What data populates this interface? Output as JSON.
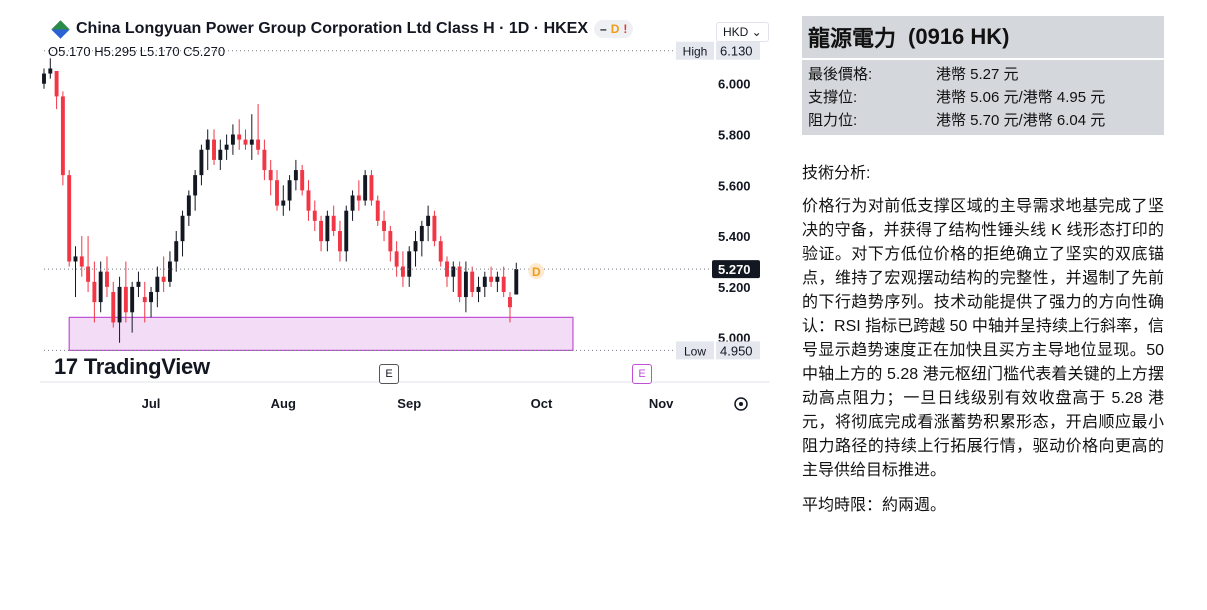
{
  "chart": {
    "instrument": "China Longyuan Power Group Corporation Ltd Class H · 1D · HKEX",
    "badge_minus": "–",
    "badge_d": "D",
    "badge_exclaim": "!",
    "ohlc_text": "O5.170 H5.295 L5.170 C5.270",
    "currency": "HKD ⌄",
    "high_tag": "High",
    "high_value": "6.130",
    "low_tag": "Low",
    "low_value": "4.950",
    "last_price": "5.270",
    "dividend_marker": "D",
    "tv_brand": "TradingView",
    "earnings_marker": "E",
    "time_settings_icon": "gear-icon"
  },
  "colors": {
    "up": "#131722",
    "down": "#f23645",
    "zone_fill": "#f3dcf6",
    "zone_stroke": "#c04fd6",
    "label_bg": "#131722",
    "highlow_bg": "#e4e7ee",
    "dividend": "#f39b18"
  },
  "chart_data": {
    "type": "candlestick",
    "title": "China Longyuan Power Group Corporation Ltd Class H · 1D · HKEX",
    "y_ticks": [
      5.0,
      5.2,
      5.4,
      5.6,
      5.8,
      6.0
    ],
    "y_tick_labels": [
      "5.000",
      "5.200",
      "5.400",
      "5.600",
      "5.800",
      "6.000"
    ],
    "ylim": [
      4.92,
      6.18
    ],
    "x_tick_labels": [
      "Jul",
      "Aug",
      "Sep",
      "Oct",
      "Nov"
    ],
    "x_tick_index": [
      17,
      38,
      58,
      79,
      98
    ],
    "last_close": 5.27,
    "high": 6.13,
    "low": 4.95,
    "support_zone": {
      "low": 4.95,
      "high": 5.08,
      "from_index": 4,
      "to_index": 84
    },
    "ohlc": [
      [
        6.0,
        6.06,
        5.98,
        6.04
      ],
      [
        6.04,
        6.1,
        6.02,
        6.06
      ],
      [
        6.05,
        6.05,
        5.9,
        5.95
      ],
      [
        5.95,
        5.97,
        5.6,
        5.64
      ],
      [
        5.64,
        5.66,
        5.28,
        5.3
      ],
      [
        5.3,
        5.36,
        5.16,
        5.32
      ],
      [
        5.32,
        5.4,
        5.24,
        5.28
      ],
      [
        5.28,
        5.4,
        5.18,
        5.22
      ],
      [
        5.22,
        5.3,
        5.06,
        5.14
      ],
      [
        5.14,
        5.3,
        5.1,
        5.26
      ],
      [
        5.26,
        5.32,
        5.16,
        5.2
      ],
      [
        5.18,
        5.22,
        5.04,
        5.06
      ],
      [
        5.06,
        5.24,
        4.98,
        5.2
      ],
      [
        5.2,
        5.3,
        5.06,
        5.1
      ],
      [
        5.1,
        5.22,
        5.02,
        5.2
      ],
      [
        5.2,
        5.26,
        5.16,
        5.22
      ],
      [
        5.16,
        5.22,
        5.06,
        5.14
      ],
      [
        5.14,
        5.2,
        5.08,
        5.18
      ],
      [
        5.18,
        5.28,
        5.12,
        5.24
      ],
      [
        5.24,
        5.32,
        5.18,
        5.22
      ],
      [
        5.22,
        5.34,
        5.2,
        5.3
      ],
      [
        5.3,
        5.42,
        5.26,
        5.38
      ],
      [
        5.38,
        5.5,
        5.32,
        5.48
      ],
      [
        5.48,
        5.58,
        5.44,
        5.56
      ],
      [
        5.56,
        5.66,
        5.5,
        5.64
      ],
      [
        5.64,
        5.76,
        5.6,
        5.74
      ],
      [
        5.74,
        5.82,
        5.66,
        5.78
      ],
      [
        5.78,
        5.82,
        5.68,
        5.7
      ],
      [
        5.7,
        5.78,
        5.66,
        5.74
      ],
      [
        5.74,
        5.8,
        5.7,
        5.76
      ],
      [
        5.76,
        5.84,
        5.72,
        5.8
      ],
      [
        5.8,
        5.86,
        5.74,
        5.78
      ],
      [
        5.78,
        5.82,
        5.74,
        5.76
      ],
      [
        5.76,
        5.88,
        5.7,
        5.78
      ],
      [
        5.78,
        5.92,
        5.72,
        5.74
      ],
      [
        5.74,
        5.78,
        5.62,
        5.66
      ],
      [
        5.66,
        5.7,
        5.56,
        5.62
      ],
      [
        5.62,
        5.66,
        5.5,
        5.52
      ],
      [
        5.52,
        5.6,
        5.48,
        5.54
      ],
      [
        5.54,
        5.64,
        5.5,
        5.62
      ],
      [
        5.62,
        5.7,
        5.58,
        5.66
      ],
      [
        5.66,
        5.68,
        5.56,
        5.58
      ],
      [
        5.58,
        5.62,
        5.46,
        5.5
      ],
      [
        5.5,
        5.54,
        5.42,
        5.46
      ],
      [
        5.46,
        5.48,
        5.34,
        5.38
      ],
      [
        5.38,
        5.5,
        5.34,
        5.48
      ],
      [
        5.48,
        5.52,
        5.4,
        5.42
      ],
      [
        5.42,
        5.46,
        5.3,
        5.34
      ],
      [
        5.34,
        5.52,
        5.3,
        5.5
      ],
      [
        5.5,
        5.58,
        5.46,
        5.56
      ],
      [
        5.56,
        5.62,
        5.5,
        5.54
      ],
      [
        5.54,
        5.66,
        5.52,
        5.64
      ],
      [
        5.64,
        5.66,
        5.52,
        5.54
      ],
      [
        5.54,
        5.56,
        5.44,
        5.46
      ],
      [
        5.46,
        5.5,
        5.38,
        5.42
      ],
      [
        5.42,
        5.44,
        5.3,
        5.34
      ],
      [
        5.34,
        5.38,
        5.24,
        5.28
      ],
      [
        5.28,
        5.34,
        5.2,
        5.24
      ],
      [
        5.24,
        5.36,
        5.2,
        5.34
      ],
      [
        5.34,
        5.42,
        5.28,
        5.38
      ],
      [
        5.38,
        5.46,
        5.32,
        5.44
      ],
      [
        5.44,
        5.52,
        5.38,
        5.48
      ],
      [
        5.48,
        5.5,
        5.36,
        5.38
      ],
      [
        5.38,
        5.4,
        5.28,
        5.3
      ],
      [
        5.3,
        5.32,
        5.2,
        5.24
      ],
      [
        5.24,
        5.3,
        5.18,
        5.28
      ],
      [
        5.28,
        5.3,
        5.14,
        5.16
      ],
      [
        5.16,
        5.3,
        5.1,
        5.26
      ],
      [
        5.26,
        5.28,
        5.16,
        5.18
      ],
      [
        5.18,
        5.24,
        5.14,
        5.2
      ],
      [
        5.2,
        5.26,
        5.16,
        5.24
      ],
      [
        5.24,
        5.28,
        5.2,
        5.22
      ],
      [
        5.22,
        5.26,
        5.18,
        5.24
      ],
      [
        5.24,
        5.28,
        5.16,
        5.18
      ],
      [
        5.16,
        5.18,
        5.06,
        5.12
      ],
      [
        5.17,
        5.295,
        5.17,
        5.27
      ]
    ],
    "ohlc_x_index": [
      0,
      1,
      2,
      3,
      4,
      5,
      6,
      7,
      8,
      9,
      10,
      11,
      12,
      13,
      14,
      15,
      16,
      17,
      18,
      19,
      20,
      21,
      22,
      23,
      24,
      25,
      26,
      27,
      28,
      29,
      30,
      31,
      32,
      33,
      34,
      35,
      36,
      37,
      38,
      39,
      40,
      41,
      42,
      43,
      44,
      45,
      46,
      47,
      48,
      49,
      50,
      51,
      52,
      53,
      54,
      55,
      56,
      57,
      58,
      59,
      60,
      61,
      62,
      63,
      64,
      65,
      66,
      67,
      68,
      69,
      70,
      71,
      72,
      73,
      74,
      75
    ],
    "x_max_index": 101
  },
  "panel": {
    "title": "龍源電力",
    "ticker": "(0916 HK)",
    "rows": [
      {
        "label": "最後價格:",
        "value": "港幣 5.27 元"
      },
      {
        "label": "支撐位:",
        "value": "港幣 5.06 元/港幣 4.95 元"
      },
      {
        "label": "阻力位:",
        "value": "港幣 5.70 元/港幣 6.04 元"
      }
    ],
    "analysis_heading": "技術分析:",
    "analysis_body": "价格行为对前低支撑区域的主导需求地基完成了坚决的守备，并获得了结构性锤头线 K 线形态打印的验证。对下方低位价格的拒绝确立了坚实的双底锚点，维持了宏观摆动结构的完整性，并遏制了先前的下行趋势序列。技术动能提供了强力的方向性确认：RSI 指标已跨越 50 中轴并呈持续上行斜率，信号显示趋势速度正在加快且买方主导地位显现。50 中轴上方的 5.28 港元枢纽门槛代表着关键的上方摆动高点阻力；一旦日线级别有效收盘高于 5.28 港元，将彻底完成看涨蓄势积累形态，开启顺应最小阻力路径的持续上行拓展行情，驱动价格向更高的主导供给目标推进。",
    "period": "平均時限：約兩週。"
  }
}
